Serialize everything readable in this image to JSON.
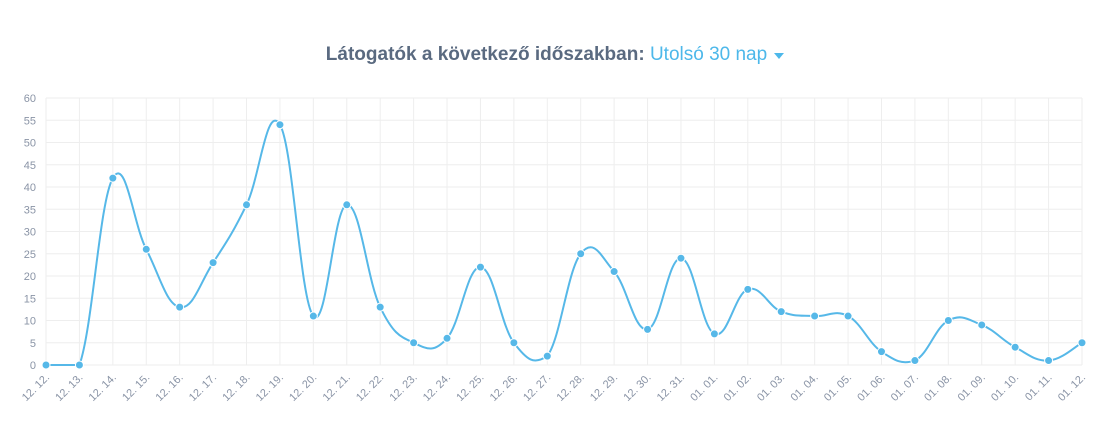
{
  "header": {
    "title": "Látogatók a következő időszakban:",
    "period": "Utolsó 30 nap"
  },
  "colors": {
    "line": "#56b8e8",
    "grid": "#eeeeee",
    "title": "#5a6a80",
    "accent": "#4db8ea",
    "tick": "#8a94a6"
  },
  "chart_data": {
    "type": "line",
    "grid": true,
    "curve": "smooth",
    "categories": [
      "12. 12.",
      "12. 13.",
      "12. 14.",
      "12. 15.",
      "12. 16.",
      "12. 17.",
      "12. 18.",
      "12. 19.",
      "12. 20.",
      "12. 21.",
      "12. 22.",
      "12. 23.",
      "12. 24.",
      "12. 25.",
      "12. 26.",
      "12. 27.",
      "12. 28.",
      "12. 29.",
      "12. 30.",
      "12. 31.",
      "01. 01.",
      "01. 02.",
      "01. 03.",
      "01. 04.",
      "01. 05.",
      "01. 06.",
      "01. 07.",
      "01. 08.",
      "01. 09.",
      "01. 10.",
      "01. 11.",
      "01. 12."
    ],
    "series": [
      {
        "values": [
          0,
          0,
          42,
          26,
          13,
          23,
          36,
          54,
          11,
          36,
          13,
          5,
          6,
          22,
          5,
          2,
          25,
          21,
          8,
          24,
          7,
          17,
          12,
          11,
          11,
          3,
          1,
          10,
          9,
          4,
          1,
          5
        ]
      }
    ],
    "ylim": [
      0,
      60
    ],
    "yticks": [
      0,
      5,
      10,
      15,
      20,
      25,
      30,
      35,
      40,
      45,
      50,
      55,
      60
    ]
  }
}
